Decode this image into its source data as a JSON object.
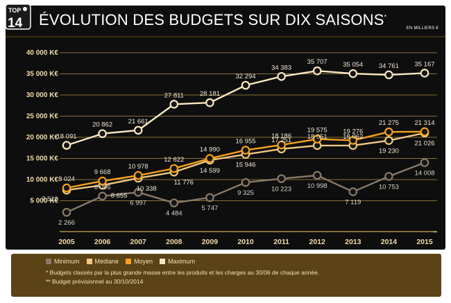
{
  "header": {
    "logo_top": "TOP",
    "logo_num": "14",
    "title": "ÉVOLUTION DES BUDGETS SUR DIX SAISONS",
    "title_mark": "*",
    "unit_note": "EN MILLIERS €"
  },
  "colors": {
    "background": "#0e0e0e",
    "gridline": "#d0a955",
    "minimum": "#8a7a68",
    "mediane": "#f0c982",
    "moyen": "#f5a21b",
    "maximum": "#fbe8c4",
    "legend_bg": "#5b4316"
  },
  "chart_data": {
    "type": "line",
    "categories": [
      "2005",
      "2006",
      "2007",
      "2008",
      "2009",
      "2010",
      "2011",
      "2012",
      "2013",
      "2014",
      "2015"
    ],
    "extra_mark": "**",
    "ylim": [
      0,
      40000
    ],
    "yticks": [
      {
        "value": 5000,
        "label": "5 000 K€"
      },
      {
        "value": 10000,
        "label": "10 000 K€"
      },
      {
        "value": 15000,
        "label": "15 000 K€"
      },
      {
        "value": 20000,
        "label": "20 000 K€"
      },
      {
        "value": 25000,
        "label": "25 000 K€"
      },
      {
        "value": 30000,
        "label": "30 000 K€"
      },
      {
        "value": 35000,
        "label": "35 000 K€"
      },
      {
        "value": 40000,
        "label": "40 000 K€"
      }
    ],
    "grid": true,
    "series": [
      {
        "key": "minimum",
        "name": "Minimum",
        "values": [
          2266,
          6096,
          6997,
          4484,
          5747,
          9325,
          10223,
          10998,
          7119,
          10753,
          14008
        ],
        "labels": [
          "2 266",
          "6 096",
          "6 997",
          "4 484",
          "5 747",
          "9 325",
          "10 223",
          "10 998",
          "7 119",
          "10 753",
          "14 008"
        ]
      },
      {
        "key": "mediane",
        "name": "Médiane",
        "values": [
          7518,
          8655,
          10338,
          11776,
          14599,
          15946,
          17251,
          18051,
          18062,
          19230,
          21026
        ],
        "labels": [
          "7 518",
          "8 655",
          "10 338",
          "11 776",
          "14 599",
          "15 946",
          "17 251",
          "18 051",
          "18 062",
          "19 230",
          "21 026"
        ]
      },
      {
        "key": "moyen",
        "name": "Moyen",
        "values": [
          8024,
          9668,
          10978,
          12622,
          14990,
          16955,
          18186,
          19575,
          19276,
          21275,
          21314
        ],
        "labels": [
          "8 024",
          "9 668",
          "10 978",
          "12 622",
          "14 990",
          "16 955",
          "18 186",
          "19 575",
          "19 276",
          "21 275",
          "21 314"
        ]
      },
      {
        "key": "maximum",
        "name": "Maximum",
        "values": [
          18091,
          20862,
          21661,
          27811,
          28181,
          32294,
          34383,
          35707,
          35054,
          34761,
          35167
        ],
        "labels": [
          "18 091",
          "20 862",
          "21 661",
          "27 811",
          "28 181",
          "32 294",
          "34 383",
          "35 707",
          "35 054",
          "34 761",
          "35 167"
        ]
      }
    ]
  },
  "notes": {
    "note1": "* Budgets classés par la plus grande masse entre les produits et les charges au 30/06 de chaque année.",
    "note2": "** Budget prévisionnel au 30/10/2014"
  }
}
